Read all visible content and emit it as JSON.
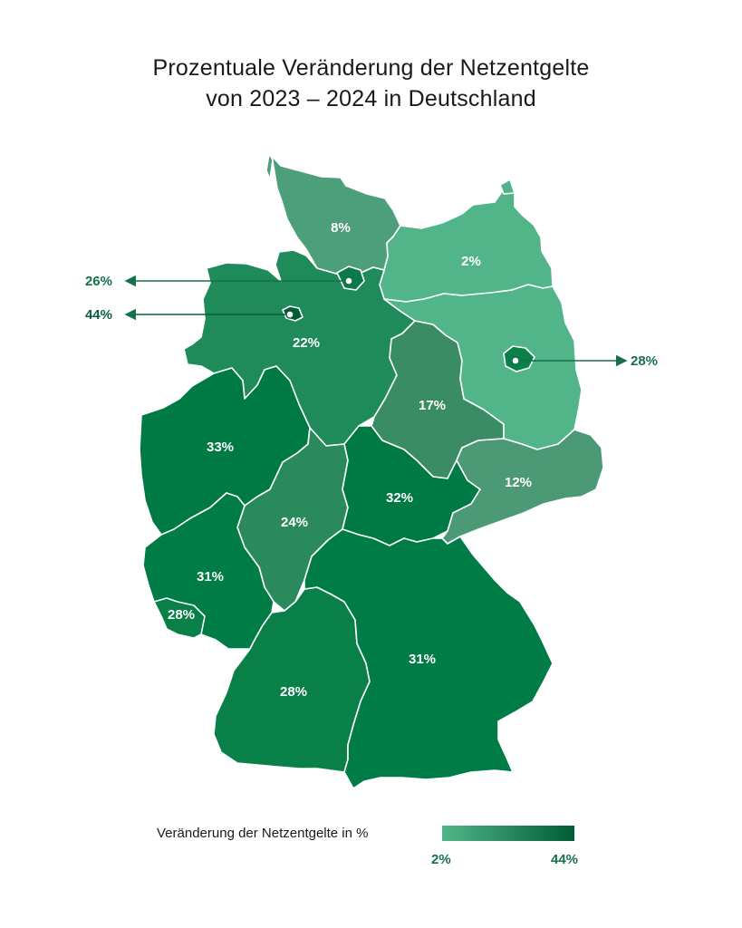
{
  "title": {
    "line1": "Prozentuale Veränderung der Netzentgelte",
    "line2": "von 2023 – 2024 in Deutschland"
  },
  "colors": {
    "scale_min": "#52b589",
    "scale_max": "#005c37",
    "region_border": "#ffffff",
    "callout_text": "#16704a"
  },
  "regions": [
    {
      "id": "SH",
      "value": "8%",
      "color": "#4d9e7a"
    },
    {
      "id": "MV",
      "value": "2%",
      "color": "#52b589"
    },
    {
      "id": "NI",
      "value": "22%",
      "color": "#1f8a5a"
    },
    {
      "id": "ST",
      "value": "17%",
      "color": "#3a8c65"
    },
    {
      "id": "BB",
      "value": "",
      "color": "#52b589"
    },
    {
      "id": "NW",
      "value": "33%",
      "color": "#007a45"
    },
    {
      "id": "HE",
      "value": "24%",
      "color": "#2a8a5d"
    },
    {
      "id": "TH",
      "value": "32%",
      "color": "#007a45"
    },
    {
      "id": "SN",
      "value": "12%",
      "color": "#4b9a75"
    },
    {
      "id": "RP",
      "value": "31%",
      "color": "#007c46"
    },
    {
      "id": "SL",
      "value": "28%",
      "color": "#0a8049"
    },
    {
      "id": "BW",
      "value": "28%",
      "color": "#0a8049"
    },
    {
      "id": "BY",
      "value": "31%",
      "color": "#007c46"
    }
  ],
  "callouts": {
    "hamburg": "26%",
    "bremen": "44%",
    "berlin": "28%"
  },
  "legend": {
    "label": "Veränderung der Netzentgelte in %",
    "min": "2%",
    "max": "44%"
  }
}
